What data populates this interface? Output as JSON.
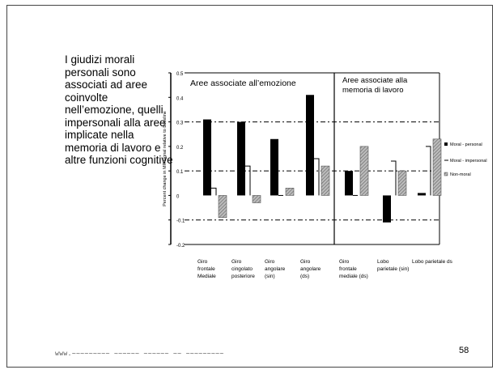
{
  "slide": {
    "body_lines": [
      "I giudizi morali",
      "personali sono",
      "associati ad aree",
      "coinvolte",
      "nell’emozione, quelli",
      "impersonali alla aree",
      "implicate nella",
      "memoria di lavoro e",
      "altre funzioni cognitive"
    ],
    "footer": "www.~~~~~~~~~ ~~~~~~  ~~~~~~  ~~ ~~~~~~~~~",
    "page_number": "58"
  },
  "chart_data": {
    "type": "bar",
    "ylabel": "Percent change in MR signal relative to baseline",
    "ylim": [
      -0.2,
      0.5
    ],
    "yticks": [
      "0.5",
      "0.4",
      "0.3",
      "0.2",
      "0.1",
      "0",
      "-0.1",
      "-0.2"
    ],
    "ytick_values": [
      0.5,
      0.4,
      0.3,
      0.2,
      0.1,
      0,
      -0.1,
      -0.2
    ],
    "dashed_lines": [
      0.3,
      0.1,
      -0.1
    ],
    "panels": [
      {
        "label": "Aree associate all’emozione",
        "categories": [
          0,
          1,
          2,
          3
        ]
      },
      {
        "label": "Aree associate alla memoria di lavoro",
        "categories": [
          4,
          5,
          6
        ]
      }
    ],
    "categories": [
      [
        "Giro",
        "frontale",
        "Mediale"
      ],
      [
        "Giro",
        "cingolato",
        "posteriore"
      ],
      [
        "Giro",
        "angolare",
        "(sin)"
      ],
      [
        "Giro",
        "angolare",
        "(ds)"
      ],
      [
        "Giro",
        "frontale",
        "mediale (ds)"
      ],
      [
        "Lobo",
        "parietale (sin)"
      ],
      [
        "Lobo parietale ds"
      ]
    ],
    "series": [
      {
        "name": "Moral - personal",
        "values": [
          0.31,
          0.3,
          0.23,
          0.41,
          0.1,
          -0.11,
          0.01
        ],
        "color": "#000000",
        "pattern": "solid"
      },
      {
        "name": "Moral - impersonal",
        "values": [
          0.03,
          0.12,
          0.0,
          0.15,
          0.0,
          0.14,
          0.2
        ],
        "color": "#000000",
        "pattern": "line"
      },
      {
        "name": "Non-moral",
        "values": [
          -0.09,
          -0.03,
          0.03,
          0.12,
          0.2,
          0.1,
          0.23
        ],
        "color": "#9a9a9a",
        "pattern": "hatched"
      }
    ],
    "legend": [
      "Moral - personal",
      "Moral - impersonal",
      "Non-moral"
    ],
    "legend_position": "right"
  }
}
